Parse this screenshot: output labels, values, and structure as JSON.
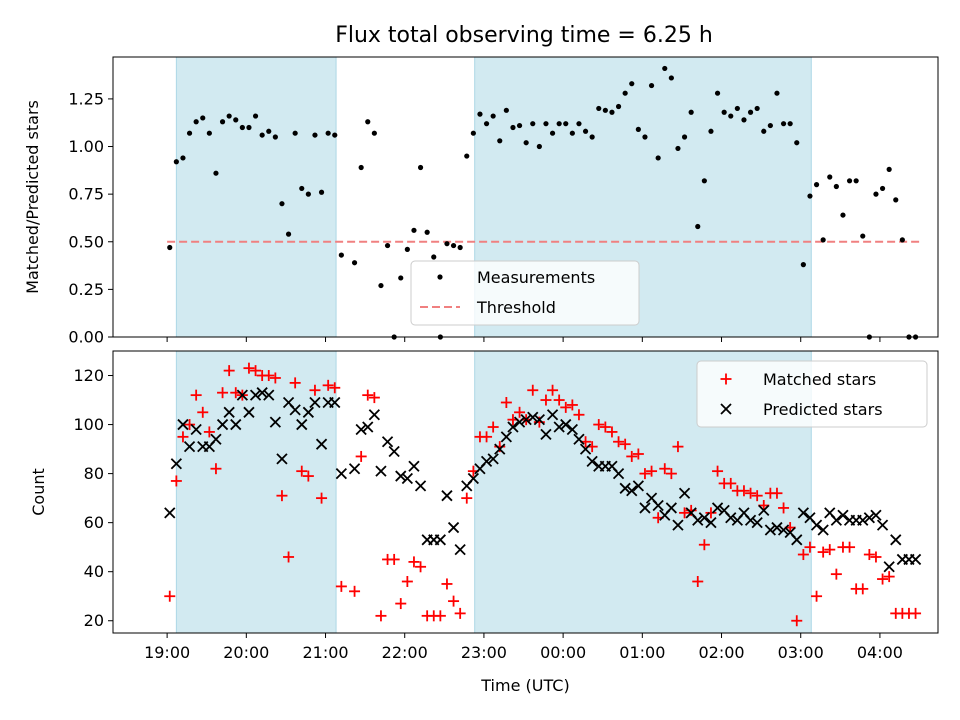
{
  "title": "Flux total observing time = 6.25 h",
  "colors": {
    "shade": "#add8e6",
    "threshold": "#f08080",
    "measurement": "#000000",
    "matched": "#ff0000",
    "predicted": "#000000"
  },
  "chart_data": [
    {
      "type": "scatter",
      "ylabel": "Matched/Predicted stars",
      "ylim": [
        0,
        1.47
      ],
      "yticks": [
        0,
        0.25,
        0.5,
        0.75,
        1.0,
        1.25
      ],
      "ytick_labels": [
        "0.00",
        "0.25",
        "0.50",
        "0.75",
        "1.00",
        "1.25"
      ],
      "legend": [
        "Measurements",
        "Threshold"
      ],
      "legend_position": "bottom-center",
      "threshold": 0.5,
      "threshold_range": [
        "19:00",
        "04:30"
      ],
      "shaded_intervals": [
        [
          "19:07",
          "21:08"
        ],
        [
          "22:53",
          "03:08"
        ]
      ],
      "series": [
        {
          "name": "Measurements",
          "x": [
            "19:02",
            "19:07",
            "19:12",
            "19:17",
            "19:22",
            "19:27",
            "19:32",
            "19:37",
            "19:42",
            "19:47",
            "19:52",
            "19:57",
            "20:02",
            "20:07",
            "20:12",
            "20:17",
            "20:22",
            "20:27",
            "20:32",
            "20:37",
            "20:42",
            "20:47",
            "20:52",
            "20:57",
            "21:02",
            "21:07",
            "21:12",
            "21:22",
            "21:27",
            "21:32",
            "21:37",
            "21:42",
            "21:47",
            "21:52",
            "21:57",
            "22:02",
            "22:07",
            "22:12",
            "22:17",
            "22:22",
            "22:27",
            "22:32",
            "22:37",
            "22:42",
            "22:47",
            "22:52",
            "22:57",
            "23:02",
            "23:07",
            "23:12",
            "23:17",
            "23:22",
            "23:27",
            "23:32",
            "23:37",
            "23:42",
            "23:47",
            "23:52",
            "23:57",
            "00:02",
            "00:07",
            "00:12",
            "00:17",
            "00:22",
            "00:27",
            "00:32",
            "00:37",
            "00:42",
            "00:47",
            "00:52",
            "00:57",
            "01:02",
            "01:07",
            "01:12",
            "01:17",
            "01:22",
            "01:27",
            "01:32",
            "01:37",
            "01:42",
            "01:47",
            "01:52",
            "01:57",
            "02:02",
            "02:07",
            "02:12",
            "02:17",
            "02:22",
            "02:27",
            "02:32",
            "02:37",
            "02:42",
            "02:47",
            "02:52",
            "02:57",
            "03:02",
            "03:07",
            "03:12",
            "03:17",
            "03:22",
            "03:27",
            "03:32",
            "03:37",
            "03:42",
            "03:47",
            "03:52",
            "03:57",
            "04:02",
            "04:07",
            "04:12",
            "04:17",
            "04:22",
            "04:27"
          ],
          "y": [
            0.47,
            0.92,
            0.94,
            1.07,
            1.13,
            1.15,
            1.07,
            0.86,
            1.13,
            1.16,
            1.14,
            1.1,
            1.1,
            1.16,
            1.06,
            1.08,
            1.05,
            0.7,
            0.54,
            1.07,
            0.78,
            0.75,
            1.06,
            0.76,
            1.07,
            1.06,
            0.43,
            0.39,
            0.89,
            1.13,
            1.07,
            0.27,
            0.48,
            0.0,
            0.31,
            0.46,
            0.56,
            0.89,
            0.55,
            0.42,
            0.0,
            0.49,
            0.48,
            0.47,
            0.95,
            1.07,
            1.17,
            1.12,
            1.16,
            1.03,
            1.19,
            1.1,
            1.11,
            1.02,
            1.12,
            1.0,
            1.12,
            1.07,
            1.12,
            1.12,
            1.07,
            1.12,
            1.08,
            1.05,
            1.2,
            1.19,
            1.18,
            1.21,
            1.28,
            1.33,
            1.09,
            1.05,
            1.32,
            0.94,
            1.41,
            1.36,
            0.99,
            1.05,
            1.18,
            0.58,
            0.82,
            1.08,
            1.28,
            1.18,
            1.16,
            1.2,
            1.14,
            1.18,
            1.2,
            1.08,
            1.11,
            1.28,
            1.12,
            1.12,
            1.02,
            0.38,
            0.74,
            0.8,
            0.51,
            0.84,
            0.79,
            0.64,
            0.82,
            0.82,
            0.53,
            0.0,
            0.75,
            0.78,
            0.88,
            0.72,
            0.51,
            0.0,
            0.0
          ]
        }
      ]
    },
    {
      "type": "scatter",
      "xlabel": "Time (UTC)",
      "ylabel": "Count",
      "ylim": [
        15,
        130
      ],
      "yticks": [
        20,
        40,
        60,
        80,
        100,
        120
      ],
      "xticks": [
        "19:00",
        "20:00",
        "21:00",
        "22:00",
        "23:00",
        "00:00",
        "01:00",
        "02:00",
        "03:00",
        "04:00"
      ],
      "legend": [
        "Matched stars",
        "Predicted stars"
      ],
      "legend_position": "top-right",
      "shaded_intervals": [
        [
          "19:07",
          "21:08"
        ],
        [
          "22:53",
          "03:08"
        ]
      ],
      "series": [
        {
          "name": "Matched stars",
          "x": [
            "19:02",
            "19:07",
            "19:12",
            "19:17",
            "19:22",
            "19:27",
            "19:32",
            "19:37",
            "19:42",
            "19:47",
            "19:52",
            "19:57",
            "20:02",
            "20:07",
            "20:12",
            "20:17",
            "20:22",
            "20:27",
            "20:32",
            "20:37",
            "20:42",
            "20:47",
            "20:52",
            "20:57",
            "21:02",
            "21:07",
            "21:12",
            "21:22",
            "21:27",
            "21:32",
            "21:37",
            "21:42",
            "21:47",
            "21:52",
            "21:57",
            "22:02",
            "22:07",
            "22:12",
            "22:17",
            "22:22",
            "22:27",
            "22:32",
            "22:37",
            "22:42",
            "22:47",
            "22:52",
            "22:57",
            "23:02",
            "23:07",
            "23:12",
            "23:17",
            "23:22",
            "23:27",
            "23:32",
            "23:37",
            "23:42",
            "23:47",
            "23:52",
            "23:57",
            "00:02",
            "00:07",
            "00:12",
            "00:17",
            "00:22",
            "00:27",
            "00:32",
            "00:37",
            "00:42",
            "00:47",
            "00:52",
            "00:57",
            "01:02",
            "01:07",
            "01:12",
            "01:17",
            "01:22",
            "01:27",
            "01:32",
            "01:37",
            "01:42",
            "01:47",
            "01:52",
            "01:57",
            "02:02",
            "02:07",
            "02:12",
            "02:17",
            "02:22",
            "02:27",
            "02:32",
            "02:37",
            "02:42",
            "02:47",
            "02:52",
            "02:57",
            "03:02",
            "03:07",
            "03:12",
            "03:17",
            "03:22",
            "03:27",
            "03:32",
            "03:37",
            "03:42",
            "03:47",
            "03:52",
            "03:57",
            "04:02",
            "04:07",
            "04:12",
            "04:17",
            "04:22",
            "04:27"
          ],
          "y": [
            30,
            77,
            95,
            100,
            112,
            105,
            97,
            82,
            113,
            122,
            113,
            112,
            123,
            122,
            120,
            120,
            119,
            71,
            46,
            117,
            81,
            79,
            114,
            70,
            116,
            115,
            34,
            32,
            87,
            112,
            111,
            22,
            45,
            45,
            27,
            36,
            44,
            42,
            22,
            22,
            22,
            35,
            28,
            23,
            70,
            81,
            95,
            95,
            99,
            91,
            109,
            102,
            105,
            102,
            114,
            101,
            110,
            114,
            110,
            107,
            108,
            104,
            93,
            91,
            100,
            99,
            97,
            93,
            92,
            87,
            88,
            80,
            81,
            62,
            82,
            80,
            91,
            64,
            65,
            36,
            51,
            64,
            81,
            76,
            76,
            73,
            73,
            72,
            71,
            67,
            72,
            72,
            66,
            58,
            20,
            47,
            50,
            30,
            48,
            49,
            39,
            50,
            50,
            33,
            33,
            47,
            46,
            37,
            38,
            23,
            23,
            23,
            23
          ]
        },
        {
          "name": "Predicted stars",
          "x": [
            "19:02",
            "19:07",
            "19:12",
            "19:17",
            "19:22",
            "19:27",
            "19:32",
            "19:37",
            "19:42",
            "19:47",
            "19:52",
            "19:57",
            "20:02",
            "20:07",
            "20:12",
            "20:17",
            "20:22",
            "20:27",
            "20:32",
            "20:37",
            "20:42",
            "20:47",
            "20:52",
            "20:57",
            "21:02",
            "21:07",
            "21:12",
            "21:22",
            "21:27",
            "21:32",
            "21:37",
            "21:42",
            "21:47",
            "21:52",
            "21:57",
            "22:02",
            "22:07",
            "22:12",
            "22:17",
            "22:22",
            "22:27",
            "22:32",
            "22:37",
            "22:42",
            "22:47",
            "22:52",
            "22:57",
            "23:02",
            "23:07",
            "23:12",
            "23:17",
            "23:22",
            "23:27",
            "23:32",
            "23:37",
            "23:42",
            "23:47",
            "23:52",
            "23:57",
            "00:02",
            "00:07",
            "00:12",
            "00:17",
            "00:22",
            "00:27",
            "00:32",
            "00:37",
            "00:42",
            "00:47",
            "00:52",
            "00:57",
            "01:02",
            "01:07",
            "01:12",
            "01:17",
            "01:22",
            "01:27",
            "01:32",
            "01:37",
            "01:42",
            "01:47",
            "01:52",
            "01:57",
            "02:02",
            "02:07",
            "02:12",
            "02:17",
            "02:22",
            "02:27",
            "02:32",
            "02:37",
            "02:42",
            "02:47",
            "02:52",
            "02:57",
            "03:02",
            "03:07",
            "03:12",
            "03:17",
            "03:22",
            "03:27",
            "03:32",
            "03:37",
            "03:42",
            "03:47",
            "03:52",
            "03:57",
            "04:02",
            "04:07",
            "04:12",
            "04:17",
            "04:22",
            "04:27"
          ],
          "y": [
            64,
            84,
            100,
            91,
            98,
            91,
            91,
            94,
            100,
            105,
            100,
            112,
            105,
            112,
            113,
            112,
            101,
            86,
            109,
            106,
            100,
            105,
            109,
            92,
            109,
            109,
            80,
            82,
            98,
            99,
            104,
            81,
            93,
            89,
            79,
            78,
            83,
            75,
            53,
            53,
            53,
            71,
            58,
            49,
            75,
            78,
            82,
            85,
            86,
            90,
            95,
            99,
            101,
            102,
            103,
            102,
            96,
            104,
            99,
            100,
            98,
            94,
            90,
            85,
            83,
            83,
            83,
            80,
            74,
            73,
            75,
            66,
            70,
            67,
            63,
            66,
            59,
            72,
            64,
            61,
            62,
            60,
            66,
            65,
            62,
            61,
            64,
            61,
            60,
            65,
            57,
            58,
            57,
            56,
            53,
            64,
            62,
            59,
            57,
            64,
            61,
            63,
            61,
            61,
            61,
            62,
            63,
            59,
            42,
            53,
            45,
            45,
            45
          ]
        }
      ]
    }
  ]
}
